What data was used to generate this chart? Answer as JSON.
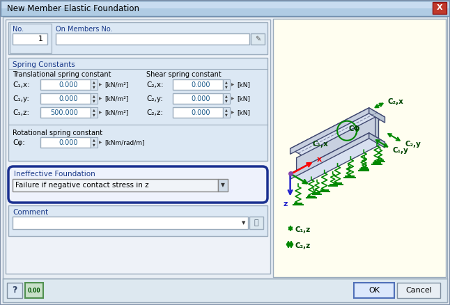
{
  "title": "New Member Elastic Foundation",
  "title_bar_color_top": "#b8d0e8",
  "title_bar_color_bot": "#d0e4f4",
  "dialog_bg": "#e8eef4",
  "section_bg": "#dce8f4",
  "panel_bg": "#eef2f8",
  "input_bg": "#ffffff",
  "label_color_blue": "#1a3a8a",
  "text_color": "#000000",
  "spring_constants_label": "Spring Constants",
  "translational_label": "Translational spring constant",
  "shear_label": "Shear spring constant",
  "rotational_label": "Rotational spring constant",
  "ineffective_label": "Ineffective Foundation",
  "dropdown_text": "Failure if negative contact stress in z",
  "comment_label": "Comment",
  "no_label": "No.",
  "on_members_label": "On Members No.",
  "no_value": "1",
  "c1x_label": "C₁,x:",
  "c1y_label": "C₁,y:",
  "c1z_label": "C₁,z:",
  "c2x_label": "C₂,x:",
  "c2y_label": "C₂,y:",
  "c2z_label": "C₂,z:",
  "cphi_label": "Cφ:",
  "c1x_val": "0.000",
  "c1y_val": "0.000",
  "c1z_val": "500.000",
  "c2x_val": "0.000",
  "c2y_val": "0.000",
  "c2z_val": "0.000",
  "cphi_val": "0.000",
  "unit_knm2": "[kN/m²]",
  "unit_kn": "[kN]",
  "unit_rot": "[kNm/rad/m]",
  "ok_btn": "OK",
  "cancel_btn": "Cancel",
  "green_color": "#008800",
  "diagram_bg": "#fffef0",
  "beam_face_color": "#c8d0e0",
  "beam_top_color": "#d8e0f0",
  "beam_edge_color": "#404870"
}
